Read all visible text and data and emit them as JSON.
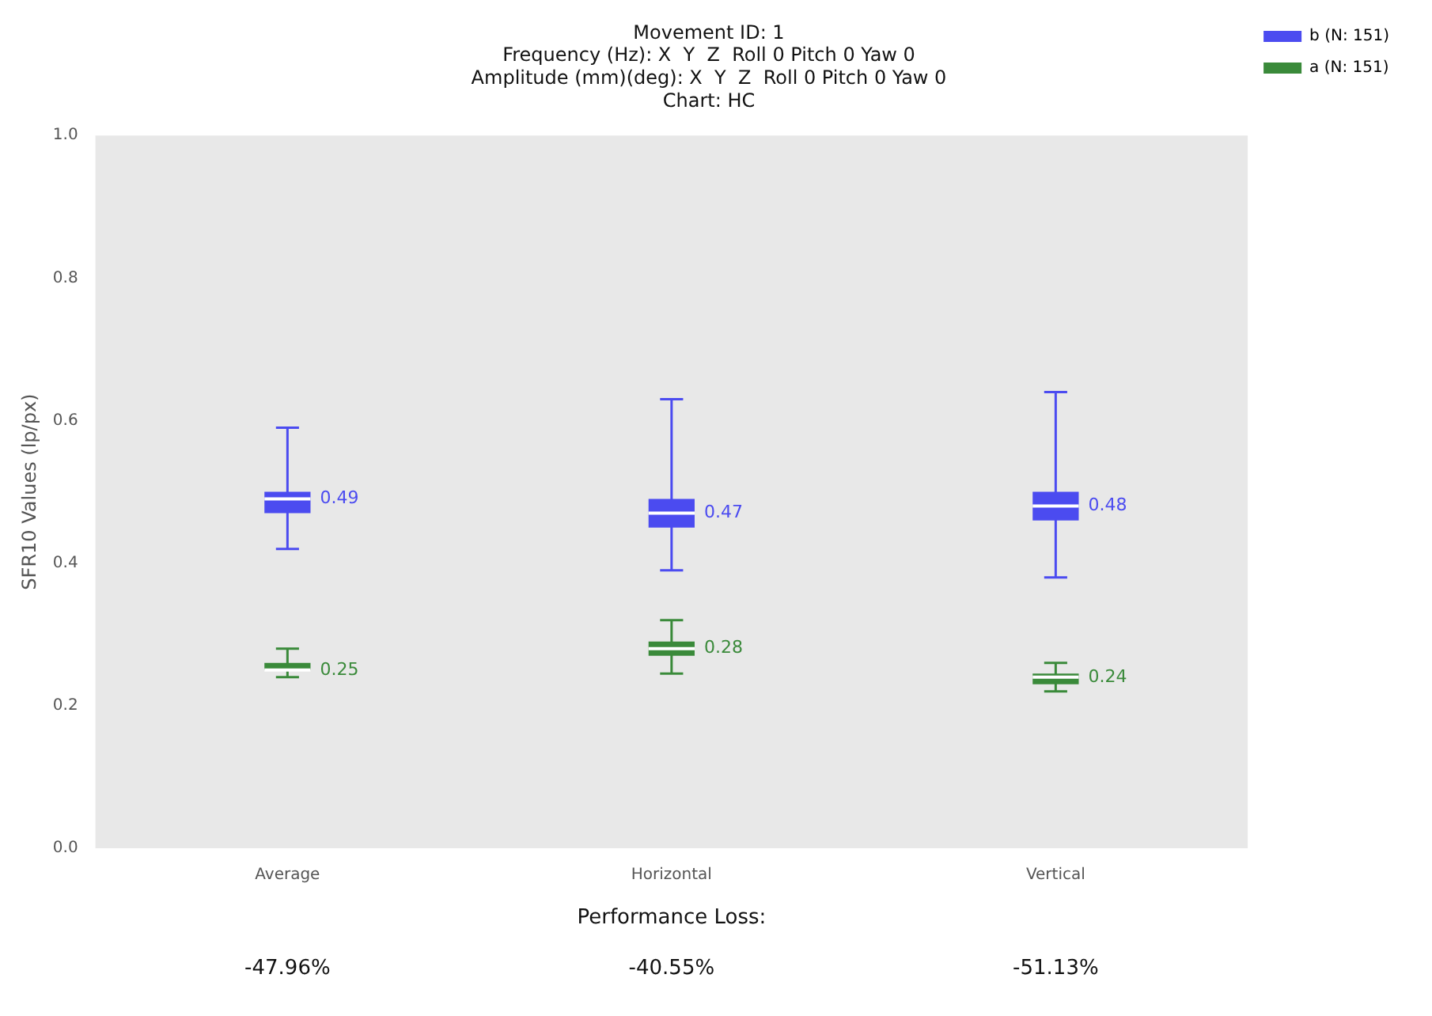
{
  "chart_data": {
    "type": "box",
    "title": "Movement ID: 1\nFrequency (Hz): X  Y  Z  Roll 0 Pitch 0 Yaw 0\nAmplitude (mm)(deg): X  Y  Z  Roll 0 Pitch 0 Yaw 0\nChart: HC",
    "ylabel": "SFR10 Values (lp/px)",
    "categories": [
      "Average",
      "Horizontal",
      "Vertical"
    ],
    "ylim": [
      0,
      1
    ],
    "yticks": [
      {
        "value": 0,
        "label": "0.0"
      },
      0.2,
      0.4,
      0.6,
      0.8,
      {
        "value": 1,
        "label": "1.0"
      }
    ],
    "legend": "top right",
    "series": [
      {
        "name": "b (N: 151)",
        "color": "#4b4bf0",
        "boxes": [
          {
            "low": 0.42,
            "q1": 0.47,
            "median": 0.49,
            "q3": 0.5,
            "high": 0.59
          },
          {
            "low": 0.39,
            "q1": 0.45,
            "median": 0.47,
            "q3": 0.49,
            "high": 0.63
          },
          {
            "low": 0.38,
            "q1": 0.46,
            "median": 0.48,
            "q3": 0.5,
            "high": 0.64
          }
        ],
        "value_labels": [
          "0.49",
          "0.47",
          "0.48"
        ]
      },
      {
        "name": "a (N: 151)",
        "color": "#3a8a3a",
        "boxes": [
          {
            "low": 0.24,
            "q1": 0.25,
            "median": 0.25,
            "q3": 0.26,
            "high": 0.28
          },
          {
            "low": 0.245,
            "q1": 0.27,
            "median": 0.28,
            "q3": 0.29,
            "high": 0.32
          },
          {
            "low": 0.22,
            "q1": 0.23,
            "median": 0.24,
            "q3": 0.245,
            "high": 0.26
          }
        ],
        "value_labels": [
          "0.25",
          "0.28",
          "0.24"
        ]
      }
    ],
    "annotations": [
      "Performance Loss:",
      "-47.96%",
      "-40.55%",
      "-51.13%"
    ]
  }
}
